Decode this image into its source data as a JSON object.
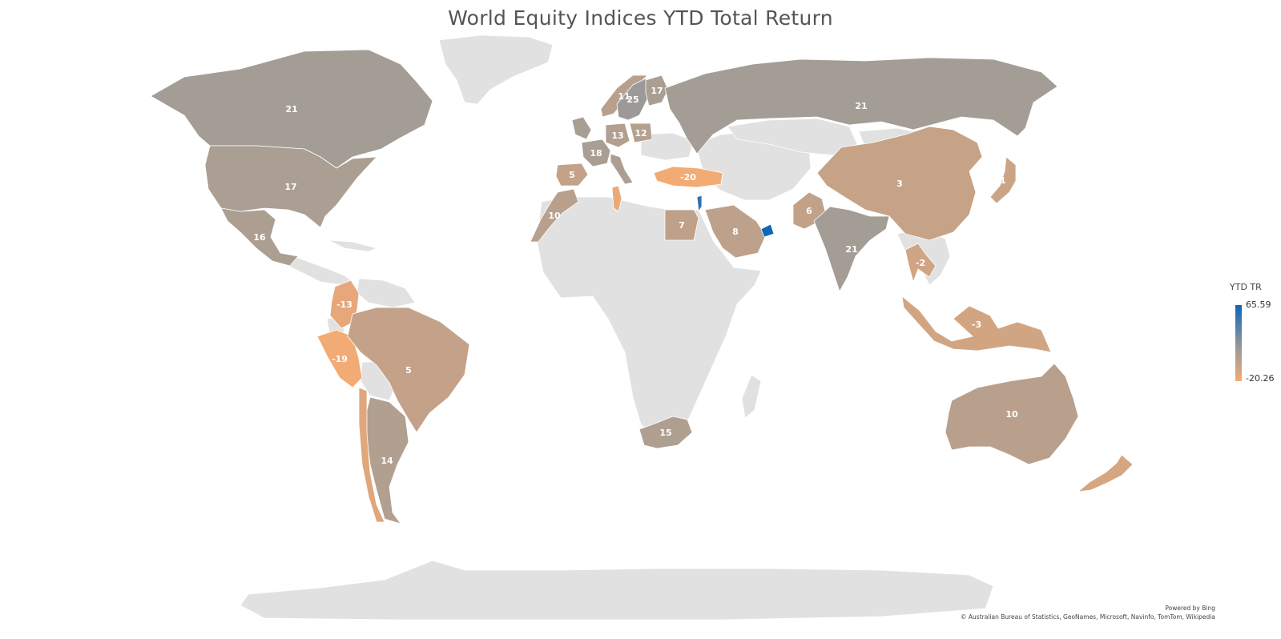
{
  "title": "World Equity Indices YTD Total Return",
  "colors": {
    "land": "#e1e1e1",
    "min": "#f4ab74",
    "mid": "#a09c97",
    "max": "#0e66b4",
    "label": "#ffffff"
  },
  "legend": {
    "title": "YTD TR",
    "max_label": "65.59",
    "min_label": "-20.26",
    "max": 65.59,
    "min": -20.26
  },
  "credits": {
    "powered_by": "Powered by Bing",
    "sources": "© Australian Bureau of Statistics, GeoNames, Microsoft, Navinfo, TomTom, Wikipedia"
  },
  "regions": [
    {
      "name": "Canada",
      "value": 21,
      "label": "21"
    },
    {
      "name": "United States",
      "value": 17,
      "label": "17"
    },
    {
      "name": "Mexico",
      "value": 16,
      "label": "16"
    },
    {
      "name": "Colombia",
      "value": -13,
      "label": "-13"
    },
    {
      "name": "Peru",
      "value": -19,
      "label": "-19"
    },
    {
      "name": "Brazil",
      "value": 5,
      "label": "5"
    },
    {
      "name": "Argentina",
      "value": 14,
      "label": "14"
    },
    {
      "name": "Chile",
      "value": -10,
      "label": ""
    },
    {
      "name": "Norway",
      "value": 11,
      "label": "11"
    },
    {
      "name": "Sweden",
      "value": 25,
      "label": "25"
    },
    {
      "name": "Finland",
      "value": 17,
      "label": "17"
    },
    {
      "name": "United Kingdom",
      "value": 18,
      "label": ""
    },
    {
      "name": "France",
      "value": 18,
      "label": "18"
    },
    {
      "name": "Germany",
      "value": 13,
      "label": "13"
    },
    {
      "name": "Poland",
      "value": 12,
      "label": "12"
    },
    {
      "name": "Spain",
      "value": 5,
      "label": "5"
    },
    {
      "name": "Italy",
      "value": 16,
      "label": ""
    },
    {
      "name": "Turkey",
      "value": -20,
      "label": "-20"
    },
    {
      "name": "Morocco",
      "value": 10,
      "label": "10"
    },
    {
      "name": "Tunisia",
      "value": -15,
      "label": ""
    },
    {
      "name": "Egypt",
      "value": 7,
      "label": "7"
    },
    {
      "name": "Israel",
      "value": 60,
      "label": ""
    },
    {
      "name": "Saudi Arabia",
      "value": 8,
      "label": "8"
    },
    {
      "name": "United Arab Emirates",
      "value": 65.59,
      "label": ""
    },
    {
      "name": "Russia",
      "value": 21,
      "label": "21"
    },
    {
      "name": "Pakistan",
      "value": 6,
      "label": "6"
    },
    {
      "name": "India",
      "value": 21,
      "label": "21"
    },
    {
      "name": "China",
      "value": 3,
      "label": "3"
    },
    {
      "name": "Japan",
      "value": 1,
      "label": "1"
    },
    {
      "name": "Thailand",
      "value": -2,
      "label": "-2"
    },
    {
      "name": "Indonesia",
      "value": -3,
      "label": "-3"
    },
    {
      "name": "South Africa",
      "value": 15,
      "label": "15"
    },
    {
      "name": "Australia",
      "value": 10,
      "label": "10"
    },
    {
      "name": "New Zealand",
      "value": -5,
      "label": ""
    }
  ]
}
